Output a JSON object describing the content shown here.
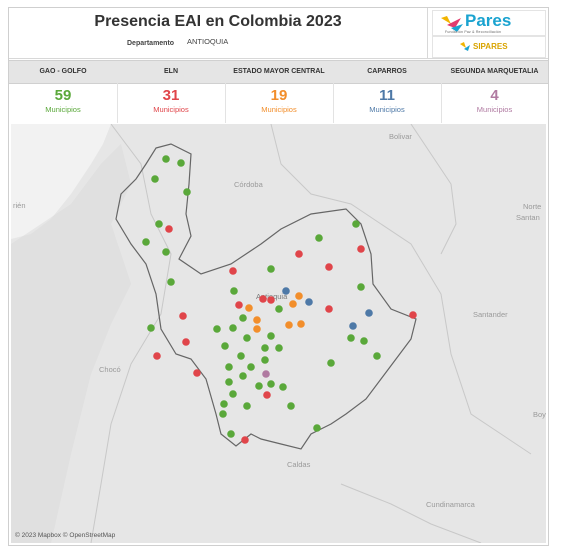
{
  "header": {
    "title": "Presencia EAI en Colombia 2023",
    "dept_label": "Departamento",
    "dept_value": "ANTIOQUIA"
  },
  "logos": {
    "pares": "Pares",
    "pares_sub": "Fundación Paz & Reconciliación",
    "sipares": "SIPARES"
  },
  "groups": [
    {
      "name": "GAO - GOLFO",
      "count": "59",
      "unit": "Municipios",
      "color": "#5aa83a"
    },
    {
      "name": "ELN",
      "count": "31",
      "unit": "Municipios",
      "color": "#e0454a"
    },
    {
      "name": "ESTADO MAYOR CENTRAL",
      "count": "19",
      "unit": "Municipios",
      "color": "#f28e2b"
    },
    {
      "name": "CAPARROS",
      "count": "11",
      "unit": "Municipios",
      "color": "#4e79a7"
    },
    {
      "name": "SEGUNDA MARQUETALIA",
      "count": "4",
      "unit": "Municipios",
      "color": "#b07aa1"
    }
  ],
  "map": {
    "labels": [
      "Bolivar",
      "Córdoba",
      "Norte",
      "Santan",
      "rién",
      "Antioquia",
      "Santander",
      "Chocó",
      "Boy",
      "Caldas",
      "Cundinamarca"
    ],
    "attribution": "© 2023 Mapbox © OpenStreetMap"
  }
}
